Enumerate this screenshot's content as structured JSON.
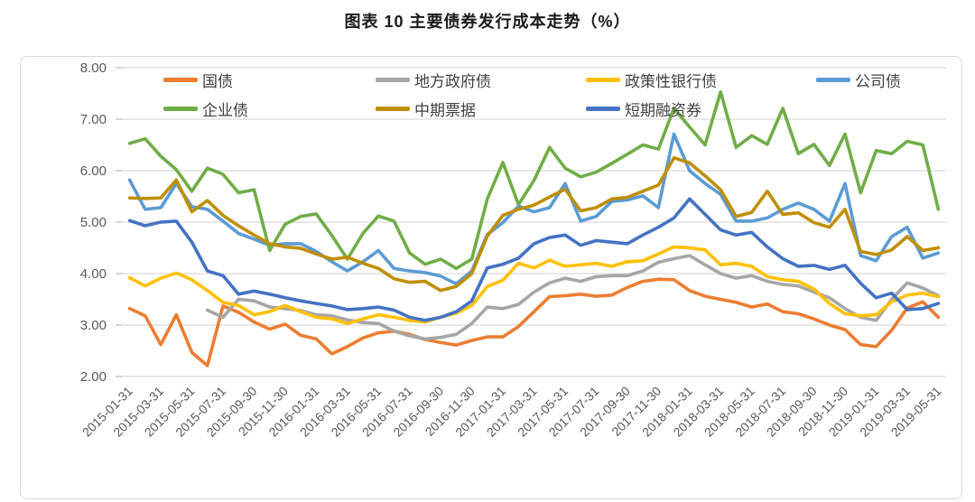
{
  "page": {
    "title": "图表 10 主要债券发行成本走势（%）"
  },
  "chart_data": {
    "type": "line",
    "title": "图表 10 主要债券发行成本走势（%）",
    "unit": "%",
    "legend_position": "top-inside",
    "y_axis": {
      "min": 2.0,
      "max": 8.0,
      "step": 1.0,
      "grid": true,
      "tick_labels": [
        "8.00",
        "7.00",
        "6.00",
        "5.00",
        "4.00",
        "3.00",
        "2.00"
      ]
    },
    "x_axis": {
      "point_count": 53,
      "months_per_point": 1,
      "label_every_n_points": 2,
      "tick_labels": [
        "2015-01-31",
        "2015-03-31",
        "2015-05-31",
        "2015-07-31",
        "2015-09-30",
        "2015-11-30",
        "2016-01-31",
        "2016-03-31",
        "2016-05-31",
        "2016-07-31",
        "2016-09-30",
        "2016-11-30",
        "2017-01-31",
        "2017-03-31",
        "2017-05-31",
        "2017-07-31",
        "2017-09-30",
        "2017-11-30",
        "2018-01-31",
        "2018-03-31",
        "2018-05-31",
        "2018-07-31",
        "2018-09-30",
        "2018-11-30",
        "2019-01-31",
        "2019-03-31",
        "2019-05-31"
      ]
    },
    "series": [
      {
        "name": "国债",
        "name_en": "treasury-bonds",
        "color": "#ED7D31",
        "values": [
          3.32,
          3.18,
          2.62,
          3.2,
          2.47,
          2.21,
          3.37,
          3.25,
          3.06,
          2.92,
          3.02,
          2.8,
          2.73,
          2.44,
          2.58,
          2.75,
          2.85,
          2.88,
          2.82,
          2.72,
          2.66,
          2.61,
          2.7,
          2.77,
          2.77,
          2.97,
          3.26,
          3.55,
          3.57,
          3.6,
          3.56,
          3.58,
          3.73,
          3.85,
          3.89,
          3.88,
          3.67,
          3.56,
          3.5,
          3.44,
          3.35,
          3.41,
          3.26,
          3.22,
          3.12,
          3.0,
          2.91,
          2.62,
          2.58,
          2.9,
          3.33,
          3.45,
          3.15
        ]
      },
      {
        "name": "地方政府债",
        "name_en": "local-government-bonds",
        "color": "#A6A6A6",
        "values": [
          null,
          null,
          null,
          null,
          null,
          3.29,
          3.15,
          3.5,
          3.47,
          3.35,
          3.32,
          3.28,
          3.2,
          3.18,
          3.1,
          3.05,
          3.03,
          2.88,
          2.79,
          2.73,
          2.76,
          2.82,
          3.03,
          3.35,
          3.32,
          3.4,
          3.64,
          3.82,
          3.91,
          3.85,
          3.94,
          3.96,
          3.96,
          4.05,
          4.22,
          4.29,
          4.35,
          4.17,
          4.0,
          3.91,
          3.96,
          3.85,
          3.79,
          3.76,
          3.64,
          3.53,
          3.32,
          3.15,
          3.09,
          3.5,
          3.82,
          3.72,
          3.57
        ]
      },
      {
        "name": "政策性银行债",
        "name_en": "policy-bank-bonds",
        "color": "#FFC000",
        "values": [
          3.92,
          3.76,
          3.91,
          4.01,
          3.88,
          3.67,
          3.44,
          3.38,
          3.2,
          3.26,
          3.38,
          3.26,
          3.15,
          3.12,
          3.03,
          3.12,
          3.2,
          3.15,
          3.09,
          3.06,
          3.15,
          3.23,
          3.38,
          3.75,
          3.87,
          4.2,
          4.11,
          4.26,
          4.14,
          4.17,
          4.2,
          4.14,
          4.23,
          4.25,
          4.38,
          4.52,
          4.5,
          4.46,
          4.17,
          4.2,
          4.14,
          3.94,
          3.88,
          3.85,
          3.7,
          3.42,
          3.22,
          3.18,
          3.2,
          3.45,
          3.58,
          3.62,
          3.55
        ]
      },
      {
        "name": "公司债",
        "name_en": "corporate-bonds",
        "color": "#5B9BD5",
        "values": [
          5.82,
          5.25,
          5.28,
          5.75,
          5.3,
          5.25,
          5.02,
          4.78,
          4.67,
          4.55,
          4.58,
          4.58,
          4.43,
          4.23,
          4.05,
          4.23,
          4.45,
          4.1,
          4.05,
          4.02,
          3.95,
          3.8,
          4.05,
          4.76,
          4.99,
          5.31,
          5.2,
          5.28,
          5.75,
          5.02,
          5.11,
          5.4,
          5.43,
          5.51,
          5.28,
          6.71,
          6.0,
          5.75,
          5.54,
          5.02,
          5.02,
          5.08,
          5.25,
          5.37,
          5.25,
          5.02,
          5.75,
          4.35,
          4.25,
          4.72,
          4.9,
          4.3,
          4.4
        ]
      },
      {
        "name": "企业债",
        "name_en": "enterprise-bonds",
        "color": "#70AD47",
        "values": [
          6.53,
          6.62,
          6.28,
          6.02,
          5.6,
          6.05,
          5.93,
          5.57,
          5.63,
          4.45,
          4.96,
          5.11,
          5.16,
          4.74,
          4.28,
          4.78,
          5.12,
          5.02,
          4.4,
          4.18,
          4.28,
          4.1,
          4.28,
          5.45,
          6.16,
          5.34,
          5.81,
          6.45,
          6.05,
          5.88,
          5.97,
          6.14,
          6.32,
          6.5,
          6.42,
          7.21,
          6.85,
          6.5,
          7.53,
          6.45,
          6.68,
          6.51,
          7.21,
          6.33,
          6.51,
          6.1,
          6.71,
          5.57,
          6.39,
          6.33,
          6.57,
          6.5,
          5.25
        ]
      },
      {
        "name": "中期票据",
        "name_en": "medium-term-notes",
        "color": "#BF8F00",
        "values": [
          5.47,
          5.46,
          5.47,
          5.82,
          5.2,
          5.42,
          5.13,
          4.93,
          4.75,
          4.58,
          4.52,
          4.49,
          4.38,
          4.28,
          4.32,
          4.2,
          4.1,
          3.9,
          3.83,
          3.85,
          3.67,
          3.75,
          4.0,
          4.73,
          5.13,
          5.25,
          5.33,
          5.49,
          5.64,
          5.22,
          5.28,
          5.45,
          5.48,
          5.6,
          5.72,
          6.25,
          6.15,
          5.9,
          5.63,
          5.11,
          5.19,
          5.6,
          5.15,
          5.18,
          4.99,
          4.9,
          5.25,
          4.43,
          4.37,
          4.46,
          4.72,
          4.45,
          4.5
        ]
      },
      {
        "name": "短期融资券",
        "name_en": "short-term-financing-bills",
        "color": "#4472C4",
        "values": [
          5.03,
          4.93,
          5.0,
          5.02,
          4.61,
          4.05,
          3.96,
          3.6,
          3.66,
          3.6,
          3.53,
          3.47,
          3.42,
          3.37,
          3.3,
          3.32,
          3.35,
          3.29,
          3.15,
          3.09,
          3.15,
          3.26,
          3.47,
          4.11,
          4.18,
          4.3,
          4.58,
          4.7,
          4.75,
          4.55,
          4.64,
          4.61,
          4.58,
          4.75,
          4.9,
          5.08,
          5.45,
          5.15,
          4.85,
          4.75,
          4.8,
          4.52,
          4.29,
          4.14,
          4.16,
          4.08,
          4.16,
          3.81,
          3.53,
          3.62,
          3.3,
          3.32,
          3.42
        ]
      }
    ],
    "colors": {
      "grid": "#D9D9D9",
      "axis_text": "#595959",
      "box_border": "#D9D9D9"
    }
  }
}
